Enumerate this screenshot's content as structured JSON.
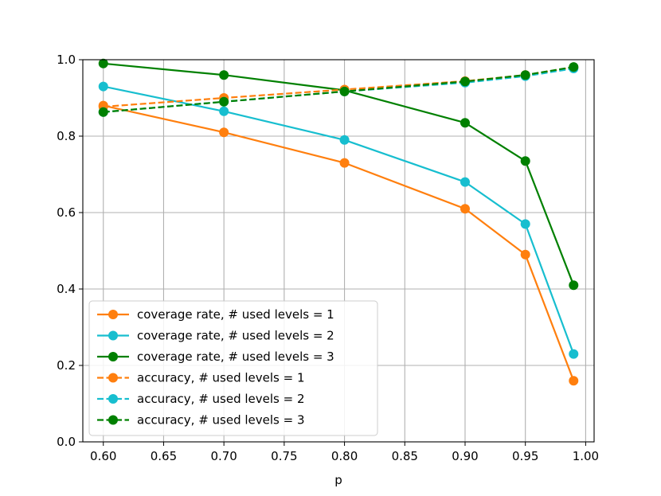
{
  "chart_data": {
    "type": "line",
    "title": "",
    "xlabel": "p",
    "ylabel": "",
    "xlim": [
      0.583,
      1.007
    ],
    "ylim": [
      0.0,
      1.0
    ],
    "grid": true,
    "legend_position": "lower-left",
    "x": [
      0.6,
      0.7,
      0.8,
      0.9,
      0.95,
      0.99
    ],
    "xticks": [
      0.6,
      0.65,
      0.7,
      0.75,
      0.8,
      0.85,
      0.9,
      0.95,
      1.0
    ],
    "xtick_labels": [
      "0.60",
      "0.65",
      "0.70",
      "0.75",
      "0.80",
      "0.85",
      "0.90",
      "0.95",
      "1.00"
    ],
    "yticks": [
      0.0,
      0.2,
      0.4,
      0.6,
      0.8,
      1.0
    ],
    "ytick_labels": [
      "0.0",
      "0.2",
      "0.4",
      "0.6",
      "0.8",
      "1.0"
    ],
    "series": [
      {
        "name": "coverage rate, # used levels = 1",
        "color": "#ff7f0e",
        "dash": false,
        "values": [
          0.88,
          0.81,
          0.73,
          0.61,
          0.49,
          0.16
        ]
      },
      {
        "name": "coverage rate, # used levels = 2",
        "color": "#17becf",
        "dash": false,
        "values": [
          0.93,
          0.865,
          0.79,
          0.68,
          0.57,
          0.23
        ]
      },
      {
        "name": "coverage rate, # used levels = 3",
        "color": "#008000",
        "dash": false,
        "values": [
          0.99,
          0.96,
          0.92,
          0.835,
          0.735,
          0.41
        ]
      },
      {
        "name": "accuracy, # used levels = 1",
        "color": "#ff7f0e",
        "dash": true,
        "values": [
          0.877,
          0.9,
          0.922,
          0.944,
          0.96,
          0.98
        ]
      },
      {
        "name": "accuracy, # used levels = 2",
        "color": "#17becf",
        "dash": true,
        "values": [
          0.863,
          0.89,
          0.917,
          0.94,
          0.957,
          0.977
        ]
      },
      {
        "name": "accuracy, # used levels = 3",
        "color": "#008000",
        "dash": true,
        "values": [
          0.863,
          0.89,
          0.917,
          0.943,
          0.96,
          0.981
        ]
      }
    ]
  }
}
